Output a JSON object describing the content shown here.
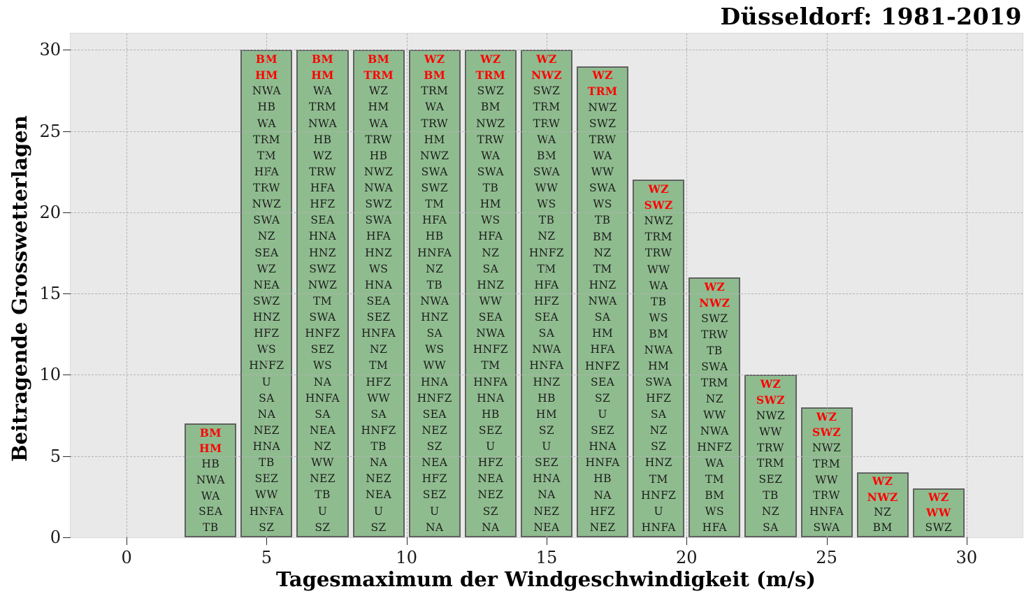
{
  "title": "Düsseldorf: 1981-2019",
  "chart_data": {
    "type": "bar",
    "title": "Düsseldorf: 1981-2019",
    "xlabel": "Tagesmaximum der Windgeschwindigkeit (m/s)",
    "ylabel": "Beitragende Grosswetterlagen",
    "xlim": [
      -2,
      32
    ],
    "ylim": [
      0,
      31
    ],
    "x_ticks": [
      0,
      5,
      10,
      15,
      20,
      25,
      30
    ],
    "y_ticks": [
      0,
      5,
      10,
      15,
      20,
      25,
      30
    ],
    "grid": "dashed gray gridlines at multiples of 5 on both axes, drawn over bars",
    "legend_position": "none",
    "bar_fill_color": "#8fbc8f",
    "bar_edge_color": "#616161",
    "plot_background": "#e9e9e9",
    "highlight_color": "#ff0000",
    "highlight_rule": "top two labels of each bar are red bold",
    "bar_data_width": 1.85,
    "bars": [
      {
        "x_center": 3,
        "x_range": [
          2,
          4
        ],
        "height": 7,
        "red_top_count": 2,
        "labels": [
          "BM",
          "HM",
          "HB",
          "NWA",
          "WA",
          "SEA",
          "TB"
        ]
      },
      {
        "x_center": 5,
        "x_range": [
          4,
          6
        ],
        "height": 30,
        "red_top_count": 2,
        "labels": [
          "BM",
          "HM",
          "NWA",
          "HB",
          "WA",
          "TRM",
          "TM",
          "HFA",
          "TRW",
          "NWZ",
          "SWA",
          "NZ",
          "SEA",
          "WZ",
          "NEA",
          "SWZ",
          "HNZ",
          "HFZ",
          "WS",
          "HNFZ",
          "U",
          "SA",
          "NA",
          "NEZ",
          "HNA",
          "TB",
          "SEZ",
          "WW",
          "HNFA",
          "SZ"
        ]
      },
      {
        "x_center": 7,
        "x_range": [
          6,
          8
        ],
        "height": 30,
        "red_top_count": 2,
        "labels": [
          "BM",
          "HM",
          "WA",
          "TRM",
          "NWA",
          "HB",
          "WZ",
          "TRW",
          "HFA",
          "HFZ",
          "SEA",
          "HNA",
          "HNZ",
          "SWZ",
          "NWZ",
          "TM",
          "SWA",
          "HNFZ",
          "SEZ",
          "WS",
          "NA",
          "HNFA",
          "SA",
          "NEA",
          "NZ",
          "WW",
          "NEZ",
          "TB",
          "U",
          "SZ"
        ]
      },
      {
        "x_center": 9,
        "x_range": [
          8,
          10
        ],
        "height": 30,
        "red_top_count": 2,
        "labels": [
          "BM",
          "TRM",
          "WZ",
          "HM",
          "WA",
          "TRW",
          "HB",
          "NWZ",
          "NWA",
          "SWZ",
          "SWA",
          "HFA",
          "HNZ",
          "WS",
          "HNA",
          "SEA",
          "SEZ",
          "HNFA",
          "NZ",
          "TM",
          "HFZ",
          "WW",
          "SA",
          "HNFZ",
          "TB",
          "NA",
          "NEZ",
          "NEA",
          "U",
          "SZ"
        ]
      },
      {
        "x_center": 11,
        "x_range": [
          10,
          12
        ],
        "height": 30,
        "red_top_count": 2,
        "labels": [
          "WZ",
          "BM",
          "TRM",
          "WA",
          "TRW",
          "HM",
          "NWZ",
          "SWA",
          "SWZ",
          "TM",
          "HFA",
          "HB",
          "HNFA",
          "NZ",
          "TB",
          "NWA",
          "HNZ",
          "SA",
          "WS",
          "WW",
          "HNA",
          "HNFZ",
          "SEA",
          "NEZ",
          "SZ",
          "NEA",
          "HFZ",
          "SEZ",
          "U",
          "NA"
        ]
      },
      {
        "x_center": 13,
        "x_range": [
          12,
          14
        ],
        "height": 30,
        "red_top_count": 2,
        "labels": [
          "WZ",
          "TRM",
          "SWZ",
          "BM",
          "NWZ",
          "TRW",
          "WA",
          "SWA",
          "TB",
          "HM",
          "WS",
          "HFA",
          "NZ",
          "SA",
          "HNZ",
          "WW",
          "SEA",
          "NWA",
          "HNFZ",
          "TM",
          "HNFA",
          "HNA",
          "HB",
          "SEZ",
          "U",
          "HFZ",
          "NEA",
          "NEZ",
          "SZ",
          "NA"
        ]
      },
      {
        "x_center": 15,
        "x_range": [
          14,
          16
        ],
        "height": 30,
        "red_top_count": 2,
        "labels": [
          "WZ",
          "NWZ",
          "SWZ",
          "TRM",
          "TRW",
          "WA",
          "BM",
          "SWA",
          "WW",
          "WS",
          "TB",
          "NZ",
          "HNFZ",
          "TM",
          "HFA",
          "HFZ",
          "SEA",
          "SA",
          "NWA",
          "HNFA",
          "HNZ",
          "HB",
          "HM",
          "SZ",
          "U",
          "SEZ",
          "HNA",
          "NA",
          "NEZ",
          "NEA"
        ]
      },
      {
        "x_center": 17,
        "x_range": [
          16,
          18
        ],
        "height": 29,
        "red_top_count": 2,
        "labels": [
          "WZ",
          "TRM",
          "NWZ",
          "SWZ",
          "TRW",
          "WA",
          "WW",
          "SWA",
          "WS",
          "TB",
          "BM",
          "NZ",
          "TM",
          "HNZ",
          "NWA",
          "SA",
          "HM",
          "HFA",
          "HNFZ",
          "SEA",
          "SZ",
          "U",
          "SEZ",
          "HNA",
          "HNFA",
          "HB",
          "NA",
          "HFZ",
          "NEZ"
        ]
      },
      {
        "x_center": 19,
        "x_range": [
          18,
          20
        ],
        "height": 22,
        "red_top_count": 2,
        "labels": [
          "WZ",
          "SWZ",
          "NWZ",
          "TRM",
          "TRW",
          "WW",
          "WA",
          "TB",
          "WS",
          "BM",
          "NWA",
          "HM",
          "SWA",
          "HFZ",
          "SA",
          "NZ",
          "SZ",
          "HNZ",
          "TM",
          "HNFZ",
          "U",
          "HNFA"
        ]
      },
      {
        "x_center": 21,
        "x_range": [
          20,
          22
        ],
        "height": 16,
        "red_top_count": 2,
        "labels": [
          "WZ",
          "NWZ",
          "SWZ",
          "TRW",
          "TB",
          "SWA",
          "TRM",
          "NZ",
          "WW",
          "NWA",
          "HNFZ",
          "WA",
          "TM",
          "BM",
          "WS",
          "HFA"
        ]
      },
      {
        "x_center": 23,
        "x_range": [
          22,
          24
        ],
        "height": 10,
        "red_top_count": 2,
        "labels": [
          "WZ",
          "SWZ",
          "NWZ",
          "WW",
          "TRW",
          "TRM",
          "SEZ",
          "TB",
          "NZ",
          "SA"
        ]
      },
      {
        "x_center": 25,
        "x_range": [
          24,
          26
        ],
        "height": 8,
        "red_top_count": 2,
        "labels": [
          "WZ",
          "SWZ",
          "NWZ",
          "TRM",
          "WW",
          "TRW",
          "HNFA",
          "SWA"
        ]
      },
      {
        "x_center": 27,
        "x_range": [
          26,
          28
        ],
        "height": 4,
        "red_top_count": 2,
        "labels": [
          "WZ",
          "NWZ",
          "NZ",
          "BM"
        ]
      },
      {
        "x_center": 29,
        "x_range": [
          28,
          30
        ],
        "height": 3,
        "red_top_count": 2,
        "labels": [
          "WZ",
          "WW",
          "SWZ"
        ]
      }
    ]
  }
}
